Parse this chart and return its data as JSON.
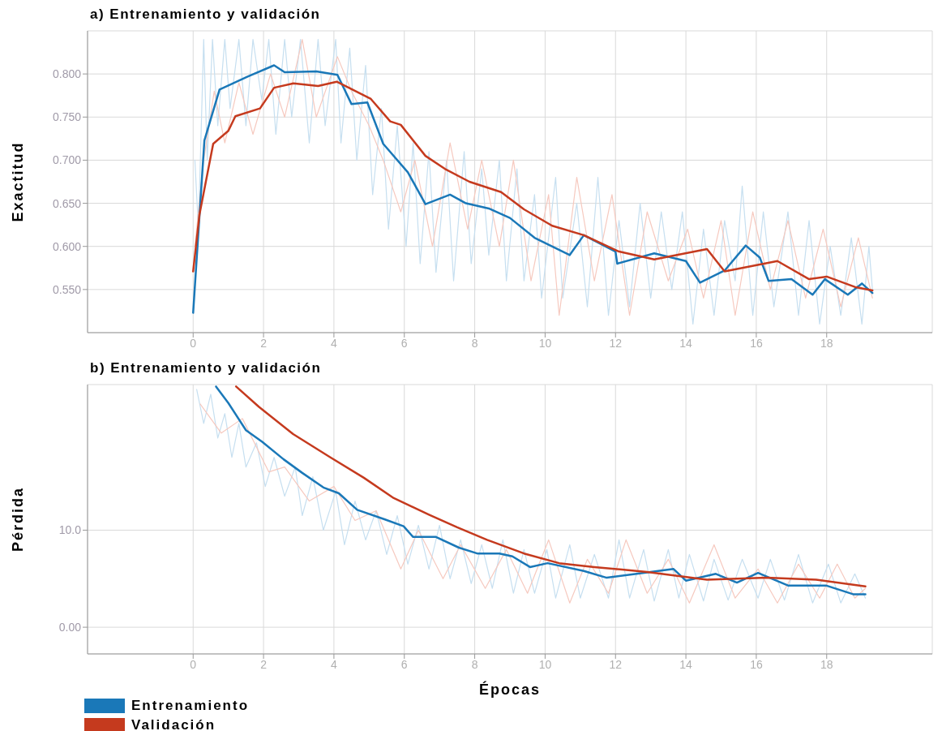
{
  "chart_data": [
    {
      "type": "line",
      "title": "a) Entrenamiento y validación",
      "ylabel": "Exactitud",
      "xlim": [
        -3,
        21
      ],
      "xticks": [
        0,
        2,
        4,
        6,
        8,
        10,
        12,
        14,
        16,
        18
      ],
      "ylim": [
        0.5,
        0.85
      ],
      "yticks": [
        {
          "value": 0.55,
          "label": "0.550"
        },
        {
          "value": 0.6,
          "label": "0.600"
        },
        {
          "value": 0.65,
          "label": "0.650"
        },
        {
          "value": 0.7,
          "label": "0.700"
        },
        {
          "value": 0.75,
          "label": "0.750"
        },
        {
          "value": 0.8,
          "label": "0.800"
        }
      ],
      "grid": true,
      "series": [
        {
          "color": "#c6dff0",
          "x": [
            0.05,
            0.15,
            0.3,
            0.4,
            0.55,
            0.7,
            0.9,
            1.05,
            1.3,
            1.5,
            1.7,
            1.95,
            2.15,
            2.35,
            2.6,
            2.8,
            3.05,
            3.3,
            3.55,
            3.75,
            4.05,
            4.2,
            4.45,
            4.65,
            4.9,
            5.1,
            5.35,
            5.55,
            5.8,
            6.05,
            6.25,
            6.45,
            6.7,
            6.9,
            7.2,
            7.4,
            7.7,
            7.9,
            8.2,
            8.4,
            8.7,
            8.9,
            9.2,
            9.4,
            9.7,
            9.9,
            10.3,
            10.5,
            10.9,
            11.2,
            11.5,
            11.8,
            12.1,
            12.4,
            12.7,
            13.0,
            13.3,
            13.6,
            13.9,
            14.2,
            14.5,
            14.8,
            15.1,
            15.4,
            15.6,
            15.9,
            16.2,
            16.5,
            16.9,
            17.2,
            17.5,
            17.8,
            18.1,
            18.4,
            18.7,
            19.0,
            19.2,
            19.3
          ],
          "values": [
            0.7,
            0.62,
            0.84,
            0.7,
            0.84,
            0.74,
            0.84,
            0.76,
            0.84,
            0.74,
            0.84,
            0.77,
            0.84,
            0.73,
            0.84,
            0.75,
            0.84,
            0.72,
            0.84,
            0.74,
            0.84,
            0.72,
            0.83,
            0.7,
            0.81,
            0.66,
            0.76,
            0.62,
            0.74,
            0.6,
            0.72,
            0.58,
            0.71,
            0.57,
            0.7,
            0.56,
            0.71,
            0.58,
            0.69,
            0.59,
            0.7,
            0.56,
            0.69,
            0.56,
            0.66,
            0.54,
            0.68,
            0.54,
            0.65,
            0.53,
            0.68,
            0.52,
            0.63,
            0.53,
            0.65,
            0.54,
            0.64,
            0.55,
            0.64,
            0.51,
            0.62,
            0.52,
            0.63,
            0.56,
            0.67,
            0.52,
            0.64,
            0.53,
            0.64,
            0.52,
            0.63,
            0.51,
            0.6,
            0.52,
            0.61,
            0.51,
            0.6,
            0.55
          ]
        },
        {
          "color": "#f6c9bf",
          "x": [
            0.05,
            0.3,
            0.6,
            0.9,
            1.3,
            1.7,
            2.2,
            2.6,
            3.1,
            3.5,
            4.1,
            4.5,
            5.0,
            5.4,
            5.9,
            6.3,
            6.8,
            7.3,
            7.8,
            8.2,
            8.7,
            9.1,
            9.6,
            10.1,
            10.4,
            10.9,
            11.4,
            11.9,
            12.4,
            12.9,
            13.5,
            14.05,
            14.5,
            15.0,
            15.4,
            15.9,
            16.4,
            16.9,
            17.4,
            17.9,
            18.4,
            18.9,
            19.3
          ],
          "values": [
            0.6,
            0.7,
            0.78,
            0.72,
            0.79,
            0.73,
            0.8,
            0.75,
            0.84,
            0.75,
            0.82,
            0.78,
            0.74,
            0.7,
            0.64,
            0.7,
            0.6,
            0.72,
            0.62,
            0.7,
            0.6,
            0.7,
            0.56,
            0.66,
            0.52,
            0.68,
            0.56,
            0.66,
            0.52,
            0.64,
            0.56,
            0.62,
            0.54,
            0.63,
            0.52,
            0.64,
            0.55,
            0.63,
            0.54,
            0.62,
            0.53,
            0.61,
            0.54
          ]
        },
        {
          "color": "#1a78b8",
          "x": [
            0,
            0.32,
            0.75,
            1.55,
            2.3,
            2.6,
            3.5,
            4.1,
            4.5,
            4.95,
            5.4,
            6.1,
            6.6,
            7.3,
            7.75,
            8.4,
            9.0,
            9.7,
            10.7,
            11.1,
            12.0,
            12.05,
            13.1,
            14.0,
            14.4,
            15.1,
            15.7,
            16.1,
            16.35,
            17.0,
            17.6,
            17.95,
            18.6,
            19.0,
            19.3
          ],
          "values": [
            0.523,
            0.723,
            0.782,
            0.797,
            0.81,
            0.802,
            0.803,
            0.799,
            0.765,
            0.767,
            0.719,
            0.686,
            0.649,
            0.66,
            0.65,
            0.644,
            0.633,
            0.61,
            0.59,
            0.613,
            0.594,
            0.58,
            0.592,
            0.583,
            0.558,
            0.572,
            0.601,
            0.587,
            0.56,
            0.562,
            0.544,
            0.562,
            0.544,
            0.557,
            0.546
          ]
        },
        {
          "color": "#c53a1e",
          "x": [
            0,
            0.18,
            0.57,
            1.0,
            1.2,
            1.9,
            2.3,
            2.85,
            3.55,
            4.08,
            5.05,
            5.6,
            5.9,
            6.6,
            7.15,
            7.85,
            8.75,
            9.4,
            10.2,
            11.1,
            12.1,
            13.1,
            14.6,
            15.1,
            16.6,
            17.5,
            18.0,
            18.8,
            19.3
          ],
          "values": [
            0.571,
            0.637,
            0.719,
            0.734,
            0.751,
            0.76,
            0.784,
            0.789,
            0.786,
            0.791,
            0.771,
            0.745,
            0.741,
            0.705,
            0.69,
            0.675,
            0.663,
            0.643,
            0.624,
            0.613,
            0.594,
            0.585,
            0.597,
            0.571,
            0.583,
            0.562,
            0.565,
            0.553,
            0.549
          ]
        }
      ]
    },
    {
      "type": "line",
      "title": "b) Entrenamiento y validación",
      "xlabel": "Épocas",
      "ylabel": "Pérdida",
      "xlim": [
        -3,
        21
      ],
      "xticks": [
        0,
        2,
        4,
        6,
        8,
        10,
        12,
        14,
        16,
        18
      ],
      "ylim": [
        -2.75,
        25
      ],
      "yticks": [
        {
          "value": 0,
          "label": "0.00"
        },
        {
          "value": 10,
          "label": "10.0"
        }
      ],
      "grid": true,
      "legend": "bottom left",
      "series": [
        {
          "color": "#c6dff0",
          "x": [
            0.1,
            0.3,
            0.5,
            0.7,
            0.9,
            1.1,
            1.3,
            1.5,
            1.8,
            2.05,
            2.3,
            2.6,
            2.9,
            3.1,
            3.4,
            3.7,
            4.05,
            4.3,
            4.6,
            4.9,
            5.2,
            5.5,
            5.8,
            6.1,
            6.4,
            6.7,
            7.0,
            7.3,
            7.6,
            7.9,
            8.2,
            8.5,
            8.8,
            9.1,
            9.4,
            9.7,
            10.05,
            10.3,
            10.7,
            11.0,
            11.4,
            11.8,
            12.1,
            12.4,
            12.8,
            13.1,
            13.5,
            13.8,
            14.1,
            14.5,
            14.8,
            15.2,
            15.6,
            16.05,
            16.4,
            16.8,
            17.2,
            17.6,
            18.05,
            18.4,
            18.8,
            19.1
          ],
          "values": [
            24.5,
            21,
            24,
            19.5,
            22,
            17.5,
            21,
            16.5,
            19,
            14.5,
            17.5,
            13.5,
            16.5,
            11.5,
            15.5,
            10,
            14,
            8.5,
            13,
            9,
            12,
            7.5,
            11.5,
            6.5,
            10.5,
            6,
            10.5,
            5,
            9,
            4.5,
            8.5,
            4,
            9,
            3.5,
            8,
            3.5,
            8,
            3,
            8.5,
            3,
            7.5,
            3,
            9,
            3,
            8,
            2.7,
            8,
            3,
            7.5,
            2.7,
            7,
            2.8,
            7,
            3,
            7,
            2.8,
            7.5,
            2.5,
            6.5,
            2.5,
            5.5,
            3
          ]
        },
        {
          "color": "#f6c9bf",
          "x": [
            0.2,
            0.8,
            1.4,
            2.15,
            2.6,
            3.3,
            4.0,
            4.6,
            5.2,
            5.9,
            6.4,
            7.1,
            7.6,
            8.3,
            8.9,
            9.5,
            10.1,
            10.7,
            11.2,
            11.8,
            12.3,
            12.9,
            13.5,
            14.1,
            14.8,
            15.4,
            16.05,
            16.6,
            17.2,
            17.8,
            18.3,
            18.8,
            19.1
          ],
          "values": [
            23,
            20,
            21.5,
            16,
            16.5,
            13,
            14.5,
            11,
            12,
            6,
            10,
            5,
            8.5,
            4,
            8,
            3.5,
            9,
            2.5,
            7,
            3.5,
            9,
            3.5,
            7,
            2.5,
            8.5,
            3,
            6,
            2.5,
            6.5,
            3,
            6.5,
            3,
            4
          ]
        },
        {
          "name": "Entrenamiento",
          "color": "#1a78b8",
          "x": [
            0.65,
            1.0,
            1.5,
            1.96,
            2.57,
            3.1,
            3.7,
            4.14,
            4.66,
            5.45,
            5.98,
            6.25,
            6.9,
            7.55,
            8.07,
            8.7,
            9.07,
            9.57,
            10.07,
            11.1,
            11.75,
            12.6,
            13.65,
            14.0,
            14.85,
            15.45,
            16.05,
            16.9,
            17.98,
            18.75,
            19.1
          ],
          "values": [
            24.8,
            23.1,
            20.3,
            19.1,
            17.3,
            15.9,
            14.4,
            13.8,
            12.1,
            11.1,
            10.4,
            9.3,
            9.3,
            8.2,
            7.6,
            7.6,
            7.3,
            6.2,
            6.6,
            5.8,
            5.1,
            5.5,
            6.0,
            4.8,
            5.5,
            4.6,
            5.6,
            4.3,
            4.3,
            3.4,
            3.4
          ]
        },
        {
          "name": "Validación",
          "color": "#c53a1e",
          "x": [
            1.22,
            1.87,
            2.84,
            3.9,
            4.85,
            5.7,
            6.7,
            7.5,
            8.35,
            9.4,
            10.4,
            11.4,
            12.9,
            14.6,
            16.3,
            17.7,
            19.1
          ],
          "values": [
            24.8,
            22.7,
            19.9,
            17.5,
            15.4,
            13.3,
            11.6,
            10.3,
            9.0,
            7.6,
            6.6,
            6.2,
            5.7,
            4.9,
            5.1,
            4.9,
            4.2
          ]
        }
      ]
    }
  ]
}
